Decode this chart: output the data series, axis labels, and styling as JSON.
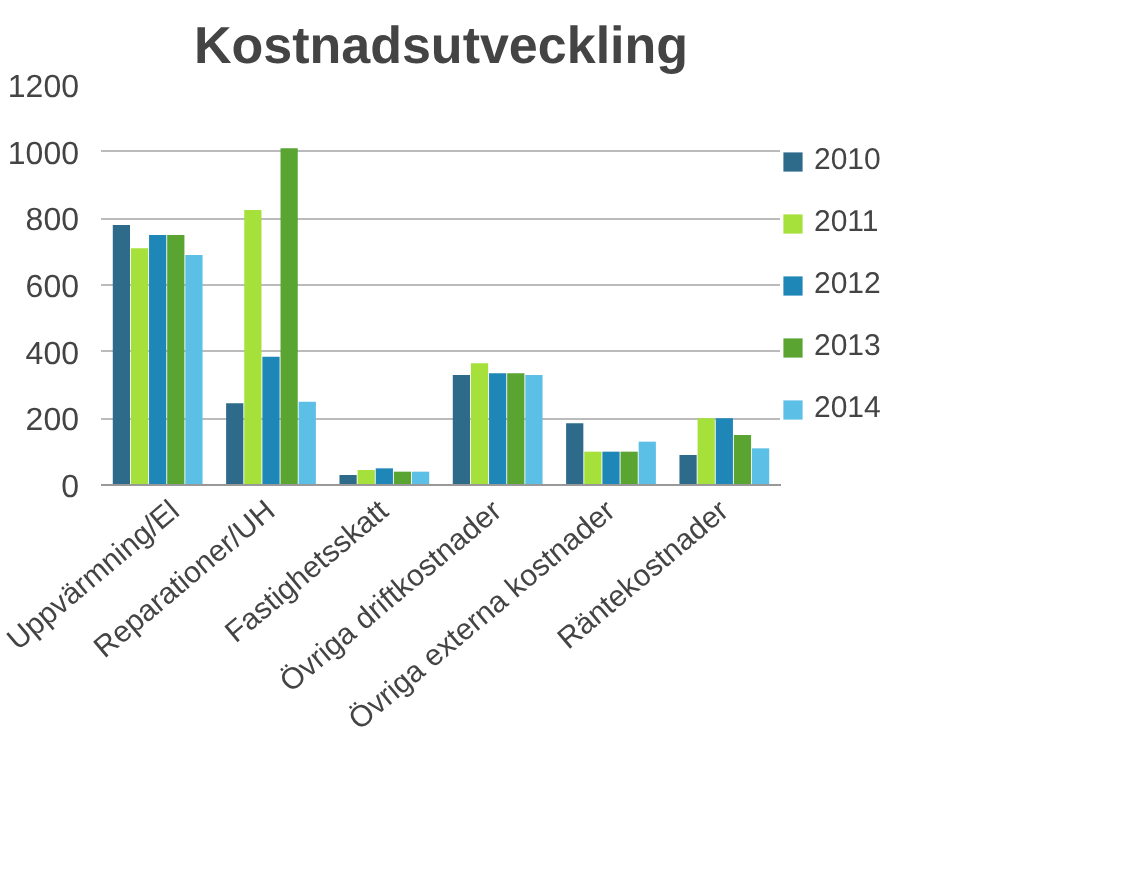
{
  "chart_data": {
    "type": "bar",
    "title": "Kostnadsutveckling",
    "categories": [
      "Uppvärmning/El",
      "Reparationer/UH",
      "Fastighetsskatt",
      "Övriga driftkostnader",
      "Övriga externa kostnader",
      "Räntekostnader"
    ],
    "series": [
      {
        "name": "2010",
        "color": "#2e6b8a",
        "values": [
          780,
          245,
          30,
          330,
          185,
          90
        ]
      },
      {
        "name": "2011",
        "color": "#a6e03a",
        "values": [
          710,
          825,
          45,
          365,
          100,
          200
        ]
      },
      {
        "name": "2012",
        "color": "#1f86b8",
        "values": [
          750,
          385,
          50,
          335,
          100,
          200
        ]
      },
      {
        "name": "2013",
        "color": "#5aa532",
        "values": [
          750,
          1010,
          40,
          335,
          100,
          150
        ]
      },
      {
        "name": "2014",
        "color": "#5cbfe6",
        "values": [
          690,
          250,
          40,
          330,
          130,
          110
        ]
      }
    ],
    "ylim": [
      0,
      1200
    ],
    "yticks": [
      0,
      200,
      400,
      600,
      800,
      1000,
      1200
    ],
    "grid": "y",
    "legend": "right"
  }
}
